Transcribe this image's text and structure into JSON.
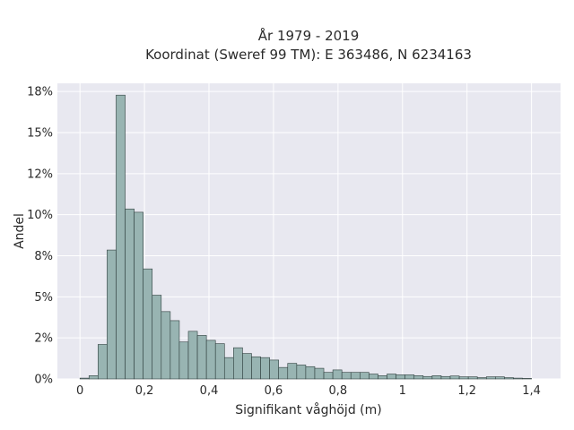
{
  "chart_data": {
    "type": "bar",
    "title_line1": "År 1979 - 2019",
    "title_line2": "Koordinat (Sweref 99 TM): E 363486, N 6234163",
    "xlabel": "Signifikant våghöjd (m)",
    "ylabel": "Andel",
    "xlim": [
      -0.07,
      1.49
    ],
    "ylim": [
      0,
      0.18
    ],
    "x_ticks": [
      {
        "value": 0,
        "label": "0"
      },
      {
        "value": 0.2,
        "label": "0,2"
      },
      {
        "value": 0.4,
        "label": "0,4"
      },
      {
        "value": 0.6,
        "label": "0,6"
      },
      {
        "value": 0.8,
        "label": "0,8"
      },
      {
        "value": 1.0,
        "label": "1"
      },
      {
        "value": 1.2,
        "label": "1,2"
      },
      {
        "value": 1.4,
        "label": "1,4"
      }
    ],
    "y_ticks": [
      {
        "value": 0,
        "label": "0%"
      },
      {
        "value": 0.025,
        "label": "2%"
      },
      {
        "value": 0.05,
        "label": "5%"
      },
      {
        "value": 0.075,
        "label": "8%"
      },
      {
        "value": 0.1,
        "label": "10%"
      },
      {
        "value": 0.125,
        "label": "12%"
      },
      {
        "value": 0.15,
        "label": "15%"
      },
      {
        "value": 0.175,
        "label": "18%"
      }
    ],
    "bin_width": 0.028,
    "bin_start": 0.0,
    "values": [
      0.0005,
      0.002,
      0.021,
      0.0785,
      0.1728,
      0.1035,
      0.1015,
      0.067,
      0.051,
      0.041,
      0.0355,
      0.0225,
      0.029,
      0.0265,
      0.0235,
      0.0215,
      0.013,
      0.019,
      0.0155,
      0.0135,
      0.013,
      0.0115,
      0.007,
      0.0095,
      0.0085,
      0.0075,
      0.0065,
      0.004,
      0.0055,
      0.004,
      0.004,
      0.004,
      0.003,
      0.002,
      0.003,
      0.0025,
      0.0025,
      0.002,
      0.0015,
      0.002,
      0.0015,
      0.0018,
      0.0013,
      0.0013,
      0.0008,
      0.0013,
      0.0013,
      0.0008,
      0.0005,
      0.0003
    ],
    "bar_color": "#98b4b2",
    "edge_color": "#2f3f3e",
    "background_color": "#e8e8f0",
    "grid_color": "#ffffff",
    "grid": true
  }
}
